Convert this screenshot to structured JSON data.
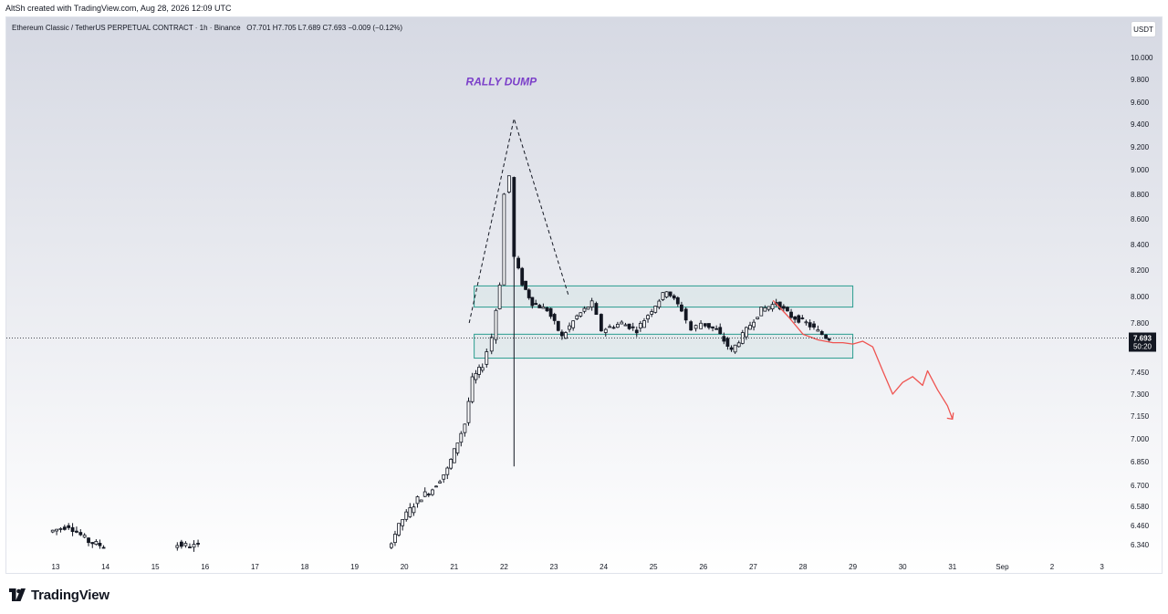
{
  "header": {
    "credit": "AltSh created with TradingView.com, Aug 28, 2026 12:09 UTC"
  },
  "legend": {
    "symbol": "Ethereum Classic / TetherUS PERPETUAL CONTRACT · 1h · Binance",
    "ohlc": "O7.701 H7.705 L7.689 C7.693 −0.009 (−0.12%)"
  },
  "currency_button": "USDT",
  "footer": {
    "brand": "TradingView",
    "logo_icon": "tradingview-logo-icon"
  },
  "chart_data": {
    "type": "candlestick",
    "interval": "1h",
    "y_axis": {
      "position": "right",
      "ticks": [
        10.0,
        9.8,
        9.6,
        9.4,
        9.2,
        9.0,
        8.8,
        8.6,
        8.4,
        8.2,
        8.0,
        7.8,
        7.45,
        7.3,
        7.15,
        7.0,
        6.85,
        6.7,
        6.58,
        6.46,
        6.34
      ],
      "tick_labels": [
        "10.000",
        "9.800",
        "9.600",
        "9.400",
        "9.200",
        "9.000",
        "8.800",
        "8.600",
        "8.400",
        "8.200",
        "8.000",
        "7.800",
        "7.450",
        "7.300",
        "7.150",
        "7.000",
        "6.850",
        "6.700",
        "6.580",
        "6.460",
        "6.340"
      ],
      "scale": "log"
    },
    "x_axis": {
      "tick_labels": [
        "13",
        "14",
        "15",
        "16",
        "17",
        "18",
        "19",
        "20",
        "21",
        "22",
        "23",
        "24",
        "25",
        "26",
        "27",
        "28",
        "29",
        "30",
        "31",
        "Sep",
        "2",
        "3"
      ]
    },
    "last_price": {
      "value": 7.693,
      "label": "7.693",
      "countdown": "50:20"
    },
    "price_path": [
      [
        12.9,
        6.42
      ],
      [
        13.3,
        6.46
      ],
      [
        13.7,
        6.36
      ],
      [
        14.0,
        6.33
      ],
      [
        15.4,
        6.34
      ],
      [
        15.9,
        6.33
      ],
      [
        19.7,
        6.32
      ],
      [
        20.0,
        6.5
      ],
      [
        20.3,
        6.62
      ],
      [
        20.6,
        6.68
      ],
      [
        20.9,
        6.8
      ],
      [
        21.1,
        6.98
      ],
      [
        21.25,
        7.1
      ],
      [
        21.4,
        7.4
      ],
      [
        21.6,
        7.5
      ],
      [
        21.8,
        7.7
      ],
      [
        21.95,
        8.1
      ],
      [
        22.05,
        8.8
      ],
      [
        22.15,
        8.95
      ],
      [
        22.25,
        8.3
      ],
      [
        22.4,
        8.1
      ],
      [
        22.6,
        7.95
      ],
      [
        22.9,
        7.9
      ],
      [
        23.2,
        7.7
      ],
      [
        23.5,
        7.85
      ],
      [
        23.8,
        7.95
      ],
      [
        24.0,
        7.75
      ],
      [
        24.4,
        7.8
      ],
      [
        24.7,
        7.75
      ],
      [
        25.0,
        7.9
      ],
      [
        25.3,
        8.05
      ],
      [
        25.6,
        7.9
      ],
      [
        25.8,
        7.75
      ],
      [
        26.0,
        7.8
      ],
      [
        26.3,
        7.75
      ],
      [
        26.6,
        7.6
      ],
      [
        26.9,
        7.75
      ],
      [
        27.2,
        7.9
      ],
      [
        27.5,
        7.95
      ],
      [
        27.8,
        7.85
      ],
      [
        28.1,
        7.8
      ],
      [
        28.5,
        7.7
      ],
      [
        28.55,
        7.693
      ]
    ],
    "annotations": [
      {
        "type": "text",
        "text": "RALLY DUMP",
        "x": 22.2,
        "y": 9.75,
        "color": "#7b3fc9"
      },
      {
        "type": "dashed-peak",
        "points": [
          [
            21.3,
            7.8
          ],
          [
            22.2,
            9.45
          ],
          [
            23.3,
            8.0
          ]
        ],
        "color": "#131722"
      },
      {
        "type": "range-box",
        "x_range": [
          21.4,
          29.0
        ],
        "y_range": [
          7.92,
          8.08
        ],
        "color": "#2a9d8f"
      },
      {
        "type": "range-box",
        "x_range": [
          21.4,
          29.0
        ],
        "y_range": [
          7.55,
          7.72
        ],
        "color": "#2a9d8f"
      },
      {
        "type": "vertical-line",
        "x": 22.2,
        "y_range": [
          6.82,
          8.6
        ],
        "color": "#131722"
      },
      {
        "type": "projection",
        "color": "#ef5350",
        "points": [
          [
            27.4,
            7.97
          ],
          [
            27.7,
            7.85
          ],
          [
            28.0,
            7.72
          ],
          [
            28.3,
            7.68
          ],
          [
            28.6,
            7.66
          ],
          [
            28.8,
            7.66
          ],
          [
            29.0,
            7.65
          ],
          [
            29.2,
            7.67
          ],
          [
            29.4,
            7.63
          ],
          [
            29.6,
            7.46
          ],
          [
            29.8,
            7.3
          ],
          [
            30.0,
            7.38
          ],
          [
            30.2,
            7.42
          ],
          [
            30.4,
            7.36
          ],
          [
            30.5,
            7.46
          ],
          [
            30.7,
            7.33
          ],
          [
            30.9,
            7.22
          ],
          [
            31.0,
            7.13
          ]
        ]
      }
    ],
    "grid": false,
    "legend_placement": "top-left"
  }
}
